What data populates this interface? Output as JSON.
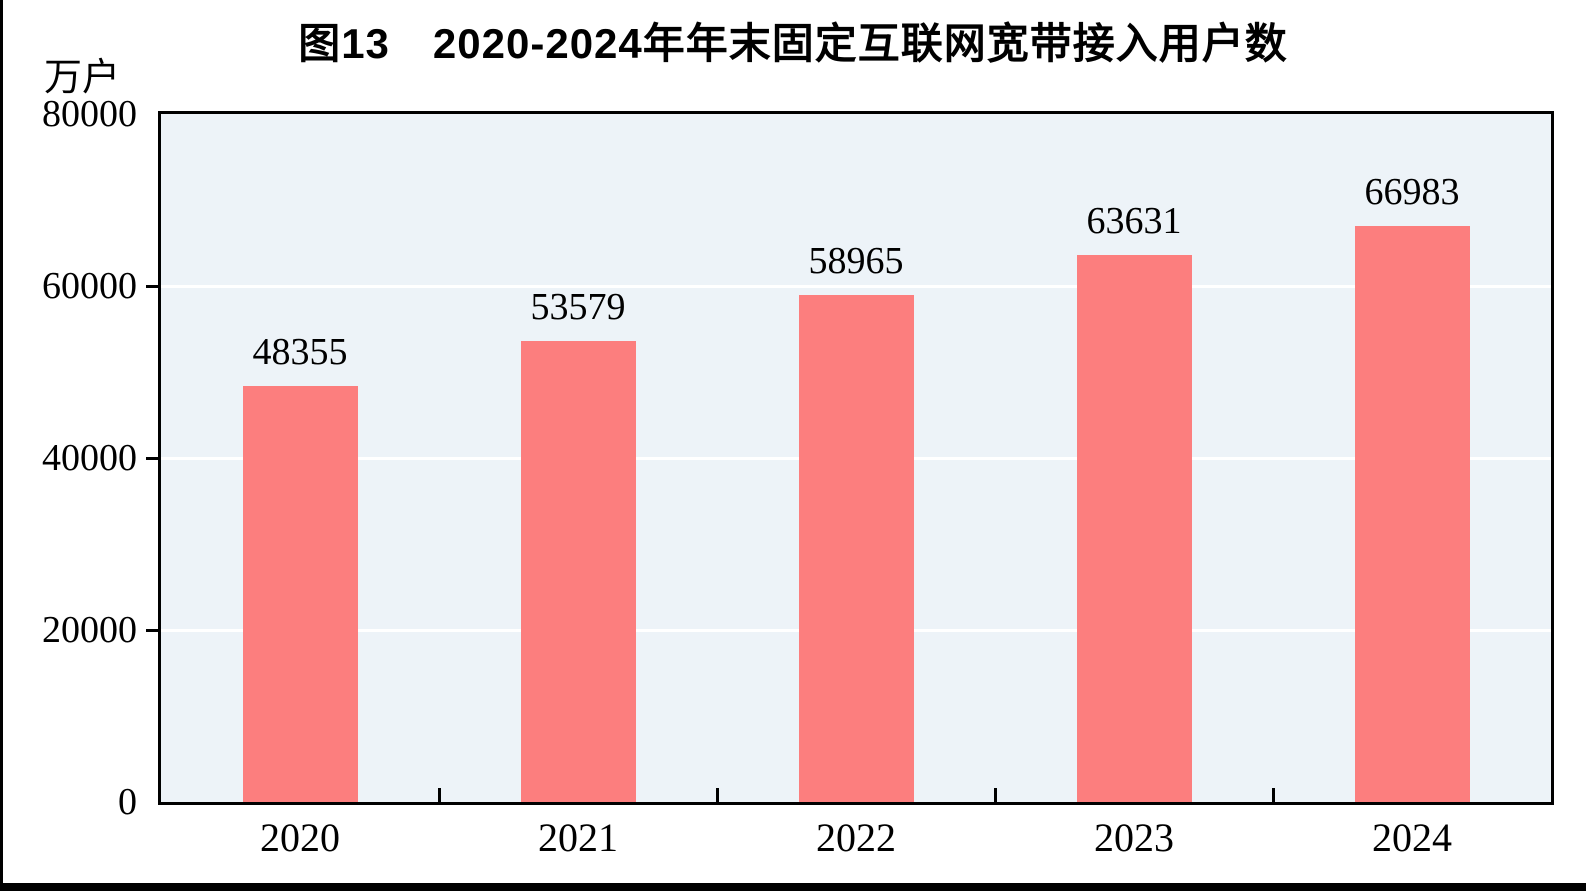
{
  "title": "图13　2020-2024年年末固定互联网宽带接入用户数",
  "y_unit_label": "万户",
  "chart_data": {
    "type": "bar",
    "title": "图13　2020-2024年年末固定互联网宽带接入用户数",
    "categories": [
      "2020",
      "2021",
      "2022",
      "2023",
      "2024"
    ],
    "values": [
      48355,
      53579,
      58965,
      63631,
      66983
    ],
    "data_labels": [
      "48355",
      "53579",
      "58965",
      "63631",
      "66983"
    ],
    "xlabel": "",
    "ylabel": "万户",
    "ylim": [
      0,
      80000
    ],
    "yticks": [
      0,
      20000,
      40000,
      60000,
      80000
    ],
    "ytick_labels": [
      "0",
      "20000",
      "40000",
      "60000",
      "80000"
    ],
    "grid": "horizontal white gridlines at 20000/40000/60000",
    "legend_position": "none",
    "bar_color": "#FC7E7E",
    "plot_background": "#EDF3F8",
    "axis_color": "#000000",
    "text_color": "#000000"
  }
}
